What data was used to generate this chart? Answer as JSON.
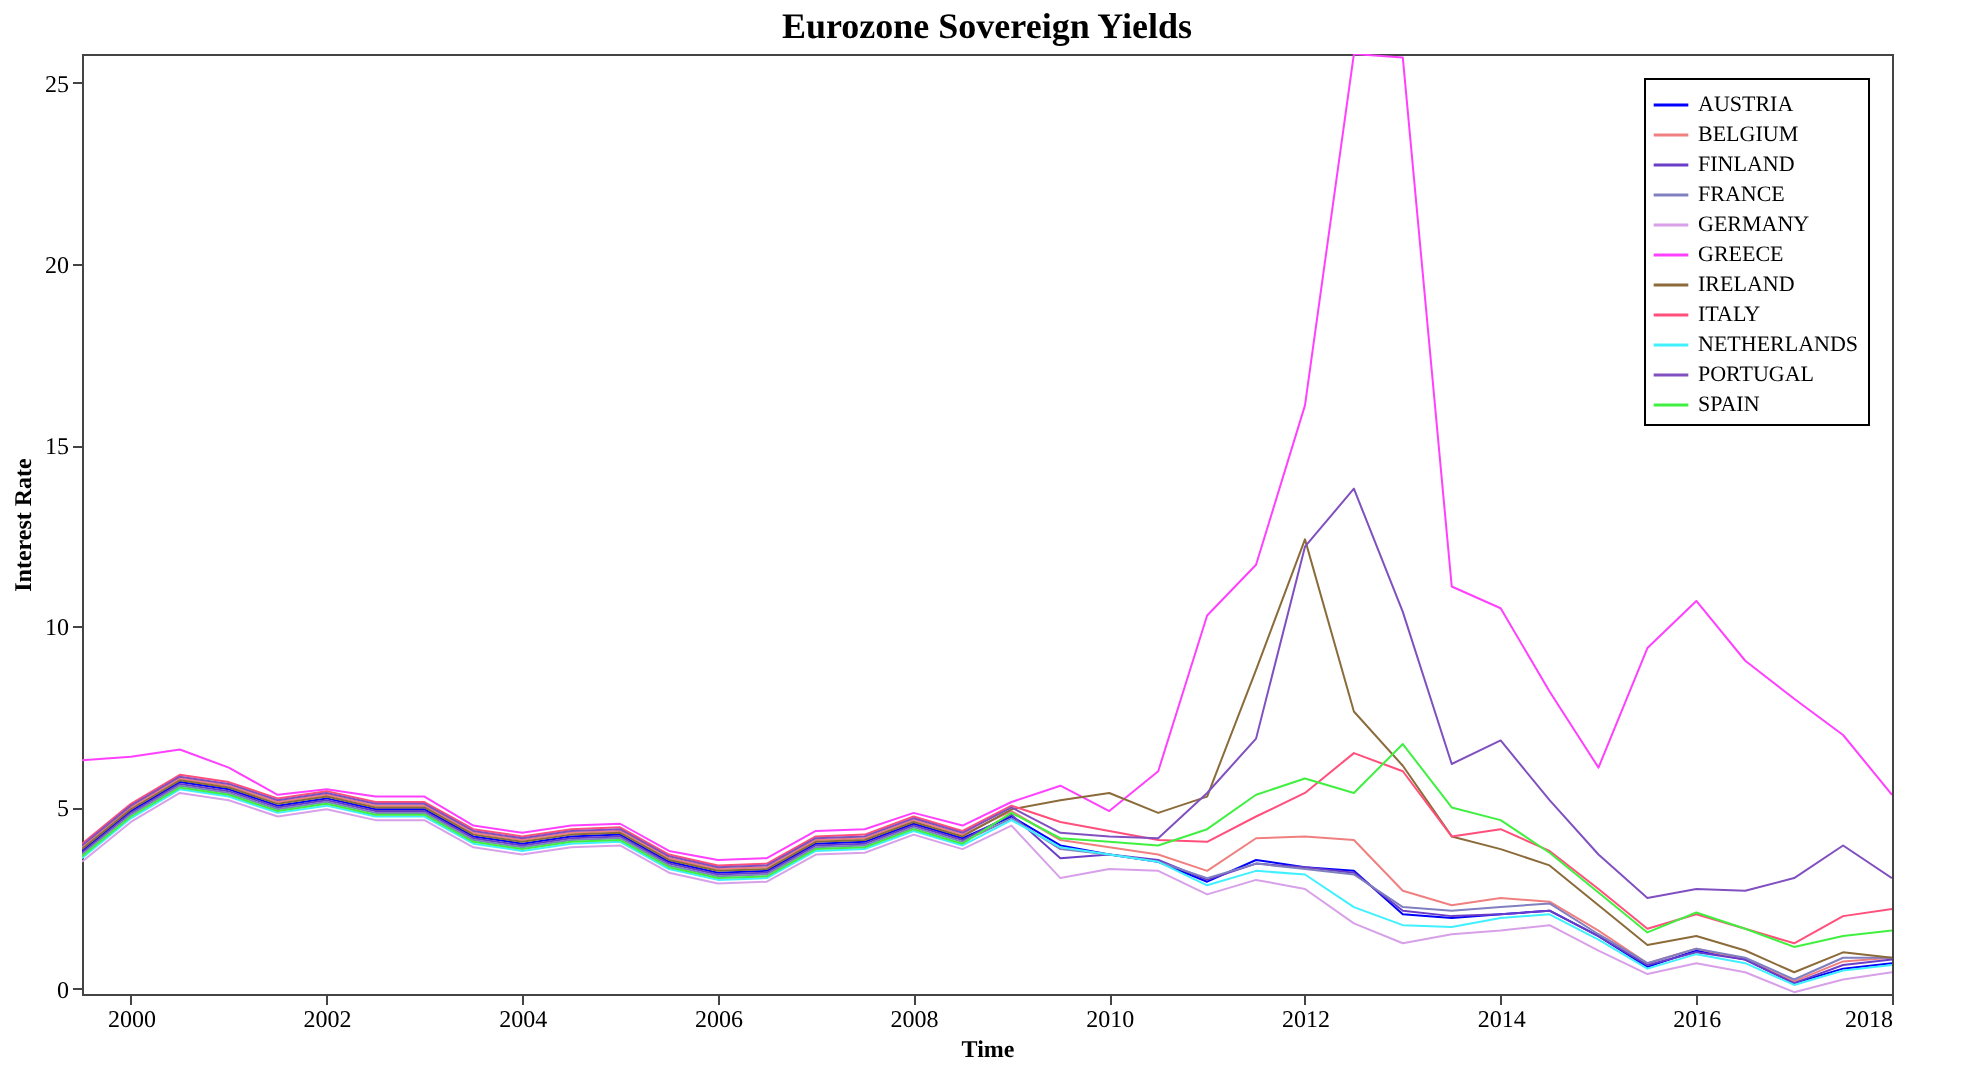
{
  "chart_data": {
    "type": "line",
    "title": "Eurozone Sovereign Yields",
    "xlabel": "Time",
    "ylabel": "Interest Rate",
    "x": [
      1999.5,
      2000,
      2000.5,
      2001,
      2001.5,
      2002,
      2002.5,
      2003,
      2003.5,
      2004,
      2004.5,
      2005,
      2005.5,
      2006,
      2006.5,
      2007,
      2007.5,
      2008,
      2008.5,
      2009,
      2009.5,
      2010,
      2010.5,
      2011,
      2011.5,
      2012,
      2012.5,
      2013,
      2013.5,
      2014,
      2014.5,
      2015,
      2015.5,
      2016,
      2016.5,
      2017,
      2017.5,
      2018
    ],
    "xlim": [
      1999.5,
      2018
    ],
    "xticks": [
      2000,
      2002,
      2004,
      2006,
      2008,
      2010,
      2012,
      2014,
      2016,
      2018
    ],
    "ylim": [
      -0.15,
      25.8
    ],
    "yticks": [
      0,
      5,
      10,
      15,
      20,
      25
    ],
    "grid": false,
    "legend": "top right",
    "line_style": "solid",
    "marker": "none",
    "series": [
      {
        "name": "AUSTRIA",
        "color": "#0000ff",
        "values": [
          3.8,
          4.9,
          5.7,
          5.5,
          5.05,
          5.25,
          4.95,
          4.95,
          4.2,
          4.0,
          4.2,
          4.25,
          3.5,
          3.2,
          3.25,
          4.0,
          4.05,
          4.55,
          4.15,
          4.75,
          3.95,
          3.7,
          3.5,
          2.95,
          3.55,
          3.35,
          3.25,
          2.05,
          1.95,
          2.05,
          2.15,
          1.45,
          0.6,
          1.05,
          0.8,
          0.15,
          0.55,
          0.7
        ]
      },
      {
        "name": "BELGIUM",
        "color": "#f08080",
        "values": [
          3.9,
          5.0,
          5.8,
          5.6,
          5.15,
          5.35,
          5.05,
          5.05,
          4.3,
          4.1,
          4.3,
          4.35,
          3.6,
          3.3,
          3.35,
          4.1,
          4.15,
          4.65,
          4.25,
          4.9,
          4.1,
          3.9,
          3.7,
          3.25,
          4.15,
          4.2,
          4.1,
          2.7,
          2.3,
          2.5,
          2.4,
          1.6,
          0.7,
          1.1,
          0.8,
          0.2,
          0.75,
          0.85
        ]
      },
      {
        "name": "FINLAND",
        "color": "#6a3dc8",
        "values": [
          3.75,
          4.85,
          5.65,
          5.45,
          5.0,
          5.2,
          4.9,
          4.9,
          4.15,
          3.95,
          4.15,
          4.2,
          3.45,
          3.15,
          3.2,
          3.95,
          4.0,
          4.5,
          4.1,
          4.8,
          3.6,
          3.7,
          3.55,
          3.0,
          3.45,
          3.35,
          3.2,
          2.15,
          2.0,
          2.05,
          2.15,
          1.45,
          0.65,
          1.0,
          0.8,
          0.15,
          0.65,
          0.8
        ]
      },
      {
        "name": "FRANCE",
        "color": "#8080c0",
        "values": [
          3.7,
          4.8,
          5.6,
          5.4,
          4.95,
          5.15,
          4.85,
          4.85,
          4.1,
          3.9,
          4.1,
          4.15,
          3.4,
          3.1,
          3.15,
          3.9,
          3.95,
          4.45,
          4.05,
          4.7,
          3.85,
          3.7,
          3.5,
          3.05,
          3.45,
          3.3,
          3.15,
          2.25,
          2.15,
          2.25,
          2.35,
          1.5,
          0.7,
          1.1,
          0.85,
          0.25,
          0.85,
          0.85
        ]
      },
      {
        "name": "GERMANY",
        "color": "#d8a0e8",
        "values": [
          3.5,
          4.6,
          5.4,
          5.2,
          4.75,
          4.95,
          4.65,
          4.65,
          3.9,
          3.7,
          3.9,
          3.95,
          3.2,
          2.9,
          2.95,
          3.7,
          3.75,
          4.25,
          3.85,
          4.5,
          3.05,
          3.3,
          3.25,
          2.6,
          3.0,
          2.75,
          1.8,
          1.25,
          1.5,
          1.6,
          1.75,
          1.05,
          0.4,
          0.7,
          0.45,
          -0.1,
          0.25,
          0.45
        ]
      },
      {
        "name": "GREECE",
        "color": "#ff40ff",
        "values": [
          6.3,
          6.4,
          6.6,
          6.1,
          5.35,
          5.5,
          5.3,
          5.3,
          4.5,
          4.3,
          4.5,
          4.55,
          3.8,
          3.55,
          3.6,
          4.35,
          4.4,
          4.85,
          4.5,
          5.15,
          5.6,
          4.9,
          6.0,
          10.3,
          11.7,
          16.1,
          25.8,
          25.7,
          11.1,
          10.5,
          8.2,
          6.1,
          9.4,
          10.7,
          9.05,
          8.0,
          7.0,
          5.35
        ]
      },
      {
        "name": "IRELAND",
        "color": "#8b6b3a",
        "values": [
          3.85,
          4.95,
          5.75,
          5.55,
          5.1,
          5.3,
          5.0,
          5.0,
          4.25,
          4.05,
          4.25,
          4.3,
          3.55,
          3.25,
          3.3,
          4.05,
          4.1,
          4.6,
          4.2,
          4.95,
          5.2,
          5.4,
          4.85,
          5.3,
          8.8,
          12.4,
          7.65,
          6.15,
          4.2,
          3.85,
          3.4,
          2.3,
          1.2,
          1.45,
          1.05,
          0.45,
          1.0,
          0.85
        ]
      },
      {
        "name": "ITALY",
        "color": "#ff4f7a",
        "values": [
          4.0,
          5.1,
          5.9,
          5.7,
          5.25,
          5.45,
          5.15,
          5.15,
          4.4,
          4.2,
          4.4,
          4.45,
          3.7,
          3.4,
          3.45,
          4.2,
          4.25,
          4.75,
          4.35,
          5.05,
          4.6,
          4.35,
          4.1,
          4.05,
          4.75,
          5.4,
          6.5,
          6.0,
          4.2,
          4.4,
          3.8,
          2.75,
          1.65,
          2.05,
          1.65,
          1.25,
          2.0,
          2.2
        ]
      },
      {
        "name": "NETHERLANDS",
        "color": "#40f0ff",
        "values": [
          3.6,
          4.7,
          5.5,
          5.3,
          4.85,
          5.05,
          4.75,
          4.75,
          4.0,
          3.8,
          4.0,
          4.05,
          3.3,
          3.0,
          3.05,
          3.8,
          3.85,
          4.35,
          3.95,
          4.65,
          3.9,
          3.7,
          3.5,
          2.85,
          3.25,
          3.15,
          2.25,
          1.75,
          1.7,
          1.95,
          2.05,
          1.35,
          0.55,
          0.95,
          0.7,
          0.1,
          0.5,
          0.65
        ]
      },
      {
        "name": "PORTUGAL",
        "color": "#8050c0",
        "values": [
          3.95,
          5.05,
          5.85,
          5.65,
          5.2,
          5.4,
          5.1,
          5.1,
          4.35,
          4.15,
          4.35,
          4.4,
          3.65,
          3.35,
          3.4,
          4.15,
          4.2,
          4.7,
          4.3,
          5.0,
          4.3,
          4.2,
          4.15,
          5.4,
          6.9,
          12.2,
          13.8,
          10.4,
          6.2,
          6.85,
          5.2,
          3.7,
          2.5,
          2.75,
          2.7,
          3.05,
          3.95,
          3.05
        ]
      },
      {
        "name": "SPAIN",
        "color": "#40f040",
        "values": [
          3.65,
          4.75,
          5.55,
          5.35,
          4.9,
          5.1,
          4.8,
          4.8,
          4.05,
          3.85,
          4.05,
          4.1,
          3.35,
          3.05,
          3.1,
          3.85,
          3.9,
          4.4,
          4.0,
          4.85,
          4.15,
          4.05,
          3.95,
          4.4,
          5.35,
          5.8,
          5.4,
          6.75,
          5.0,
          4.65,
          3.75,
          2.65,
          1.55,
          2.1,
          1.65,
          1.15,
          1.45,
          1.6
        ]
      }
    ]
  }
}
